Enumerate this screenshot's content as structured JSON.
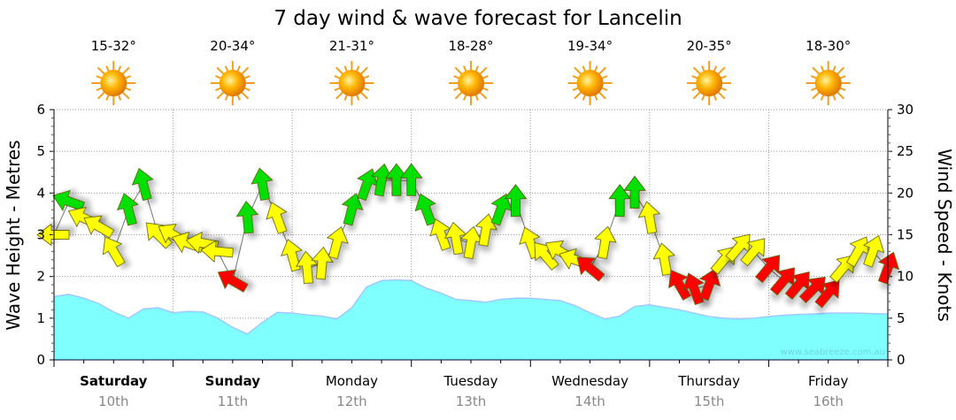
{
  "chart_data": {
    "type": "area",
    "title": "7 day wind & wave forecast for Lancelin",
    "ylabel_left": "Wave Height - Metres",
    "ylabel_right": "Wind Speed - Knots",
    "ylim_left": [
      0,
      6
    ],
    "ylim_right": [
      0,
      30
    ],
    "yticks_left": [
      "0",
      "1",
      "2",
      "3",
      "4",
      "5",
      "6"
    ],
    "yticks_right": [
      "0",
      "5",
      "10",
      "15",
      "20",
      "25",
      "30"
    ],
    "grid": true,
    "watermark": "www.seabreeze.com.au",
    "colors": {
      "wave": "#80ffff",
      "wave_line": "#a0c8ff",
      "yellow": "#ffff00",
      "green": "#00e000",
      "red": "#ff0000"
    },
    "days": [
      {
        "name": "Saturday",
        "date": "10th",
        "temp": "15-32°",
        "bold": true,
        "icon": "sun-icon"
      },
      {
        "name": "Sunday",
        "date": "11th",
        "temp": "20-34°",
        "bold": true,
        "icon": "sun-icon"
      },
      {
        "name": "Monday",
        "date": "12th",
        "temp": "21-31°",
        "bold": false,
        "icon": "sun-icon"
      },
      {
        "name": "Tuesday",
        "date": "13th",
        "temp": "18-28°",
        "bold": false,
        "icon": "sun-icon"
      },
      {
        "name": "Wednesday",
        "date": "14th",
        "temp": "19-34°",
        "bold": false,
        "icon": "sun-icon"
      },
      {
        "name": "Thursday",
        "date": "15th",
        "temp": "20-35°",
        "bold": false,
        "icon": "sun-icon"
      },
      {
        "name": "Friday",
        "date": "16th",
        "temp": "18-30°",
        "bold": false,
        "icon": "sun-icon"
      }
    ],
    "interval_hours": 3,
    "wave_height_m": [
      1.52,
      1.57,
      1.48,
      1.35,
      1.15,
      1.0,
      1.22,
      1.25,
      1.13,
      1.16,
      1.15,
      1.0,
      0.78,
      0.62,
      0.9,
      1.14,
      1.12,
      1.08,
      1.05,
      0.98,
      1.25,
      1.75,
      1.9,
      1.92,
      1.9,
      1.72,
      1.6,
      1.45,
      1.42,
      1.38,
      1.45,
      1.48,
      1.48,
      1.45,
      1.42,
      1.3,
      1.13,
      0.98,
      1.05,
      1.28,
      1.32,
      1.26,
      1.2,
      1.12,
      1.04,
      1.0,
      0.98,
      1.0,
      1.04,
      1.07,
      1.09,
      1.1,
      1.12,
      1.12,
      1.12,
      1.11,
      1.1
    ],
    "wind": [
      {
        "kn": 15,
        "dir": 270,
        "c": "yellow"
      },
      {
        "kn": 19,
        "dir": 290,
        "c": "green"
      },
      {
        "kn": 17,
        "dir": 295,
        "c": "yellow"
      },
      {
        "kn": 16,
        "dir": 300,
        "c": "yellow"
      },
      {
        "kn": 13,
        "dir": 330,
        "c": "yellow"
      },
      {
        "kn": 18,
        "dir": 345,
        "c": "green"
      },
      {
        "kn": 21,
        "dir": 345,
        "c": "green"
      },
      {
        "kn": 15,
        "dir": 315,
        "c": "yellow"
      },
      {
        "kn": 15,
        "dir": 300,
        "c": "yellow"
      },
      {
        "kn": 14,
        "dir": 290,
        "c": "yellow"
      },
      {
        "kn": 14,
        "dir": 280,
        "c": "yellow"
      },
      {
        "kn": 13,
        "dir": 275,
        "c": "yellow"
      },
      {
        "kn": 9.5,
        "dir": 300,
        "c": "red"
      },
      {
        "kn": 17,
        "dir": 355,
        "c": "green"
      },
      {
        "kn": 21,
        "dir": 350,
        "c": "green"
      },
      {
        "kn": 17,
        "dir": 340,
        "c": "yellow"
      },
      {
        "kn": 12.5,
        "dir": 345,
        "c": "yellow"
      },
      {
        "kn": 11,
        "dir": 355,
        "c": "yellow"
      },
      {
        "kn": 11.5,
        "dir": 5,
        "c": "yellow"
      },
      {
        "kn": 14,
        "dir": 15,
        "c": "yellow"
      },
      {
        "kn": 18,
        "dir": 15,
        "c": "green"
      },
      {
        "kn": 21,
        "dir": 20,
        "c": "green"
      },
      {
        "kn": 21.5,
        "dir": 10,
        "c": "green"
      },
      {
        "kn": 21.5,
        "dir": 0,
        "c": "green"
      },
      {
        "kn": 21.5,
        "dir": 0,
        "c": "green"
      },
      {
        "kn": 18,
        "dir": 340,
        "c": "green"
      },
      {
        "kn": 15,
        "dir": 340,
        "c": "yellow"
      },
      {
        "kn": 14.5,
        "dir": 350,
        "c": "yellow"
      },
      {
        "kn": 14,
        "dir": 10,
        "c": "yellow"
      },
      {
        "kn": 15.5,
        "dir": 10,
        "c": "yellow"
      },
      {
        "kn": 18,
        "dir": 20,
        "c": "green"
      },
      {
        "kn": 19,
        "dir": 0,
        "c": "green"
      },
      {
        "kn": 14,
        "dir": 340,
        "c": "yellow"
      },
      {
        "kn": 12.5,
        "dir": 320,
        "c": "yellow"
      },
      {
        "kn": 13,
        "dir": 300,
        "c": "yellow"
      },
      {
        "kn": 12,
        "dir": 290,
        "c": "yellow"
      },
      {
        "kn": 11,
        "dir": 310,
        "c": "red"
      },
      {
        "kn": 14,
        "dir": 10,
        "c": "yellow"
      },
      {
        "kn": 19,
        "dir": 0,
        "c": "green"
      },
      {
        "kn": 20,
        "dir": 0,
        "c": "green"
      },
      {
        "kn": 17,
        "dir": 350,
        "c": "yellow"
      },
      {
        "kn": 12,
        "dir": 350,
        "c": "yellow"
      },
      {
        "kn": 9,
        "dir": 330,
        "c": "red"
      },
      {
        "kn": 8.5,
        "dir": 340,
        "c": "red"
      },
      {
        "kn": 9,
        "dir": 20,
        "c": "red"
      },
      {
        "kn": 12,
        "dir": 40,
        "c": "yellow"
      },
      {
        "kn": 13.5,
        "dir": 40,
        "c": "yellow"
      },
      {
        "kn": 13,
        "dir": 40,
        "c": "yellow"
      },
      {
        "kn": 11,
        "dir": 40,
        "c": "red"
      },
      {
        "kn": 9.5,
        "dir": 40,
        "c": "red"
      },
      {
        "kn": 9,
        "dir": 40,
        "c": "red"
      },
      {
        "kn": 8.5,
        "dir": 45,
        "c": "red"
      },
      {
        "kn": 8,
        "dir": 40,
        "c": "red"
      },
      {
        "kn": 11,
        "dir": 40,
        "c": "yellow"
      },
      {
        "kn": 13,
        "dir": 30,
        "c": "yellow"
      },
      {
        "kn": 13,
        "dir": 20,
        "c": "yellow"
      },
      {
        "kn": 11,
        "dir": 20,
        "c": "red"
      }
    ]
  }
}
